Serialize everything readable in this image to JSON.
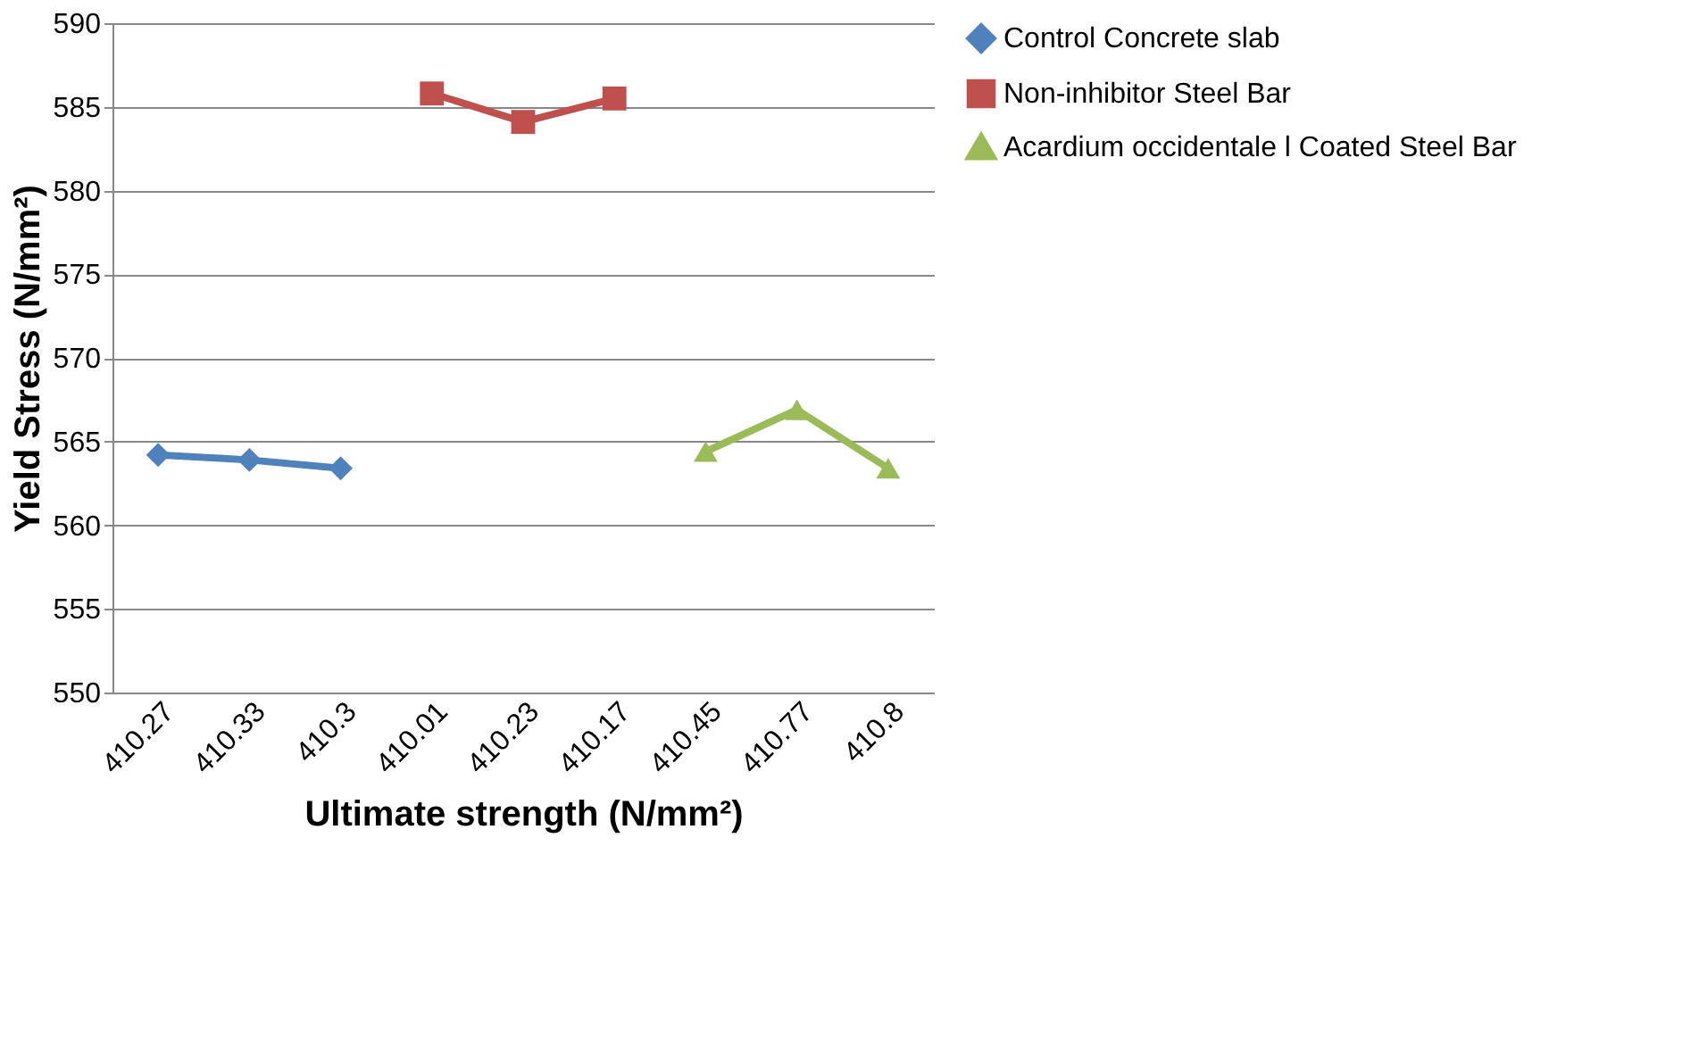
{
  "chart_data": {
    "type": "line",
    "xlabel": "Ultimate strength (N/mm²)",
    "ylabel": "Yield Stress (N/mm²)",
    "categories": [
      "410.27",
      "410.33",
      "410.3",
      "410.01",
      "410.23",
      "410.17",
      "410.45",
      "410.77",
      "410.8"
    ],
    "series": [
      {
        "name": "Control  Concrete slab",
        "color": "#4f81bd",
        "marker": "diamond",
        "values": [
          564.2,
          563.9,
          563.4,
          null,
          null,
          null,
          null,
          null,
          null
        ]
      },
      {
        "name": "Non-inhibitor Steel Bar",
        "color": "#c0504d",
        "marker": "square",
        "values": [
          null,
          null,
          null,
          585.8,
          584.1,
          585.5,
          null,
          null,
          null
        ]
      },
      {
        "name": "Acardium occidentale l Coated Steel Bar",
        "color": "#9bbb59",
        "marker": "triangle",
        "values": [
          null,
          null,
          null,
          null,
          null,
          null,
          564.4,
          566.9,
          563.4
        ]
      }
    ],
    "ylim": [
      550,
      590
    ],
    "yticks": [
      550,
      555,
      560,
      565,
      570,
      575,
      580,
      585,
      590
    ],
    "grid": "y",
    "legend": "right"
  }
}
